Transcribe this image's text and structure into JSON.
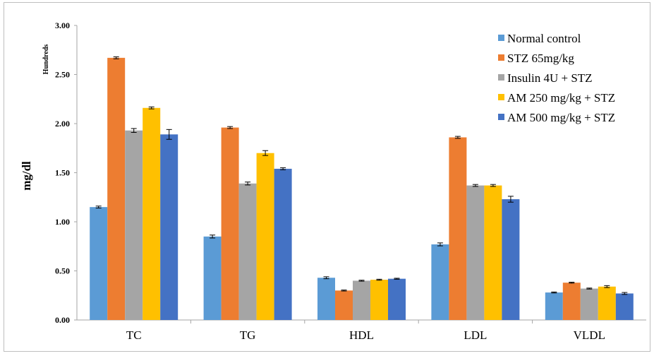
{
  "chart_data": {
    "type": "bar",
    "categories": [
      "TC",
      "TG",
      "HDL",
      "LDL",
      "VLDL"
    ],
    "ylabel": "mg/dl",
    "units_label": "Hundreds",
    "ylim": [
      0,
      3.0
    ],
    "yticks": [
      0,
      0.5,
      1.0,
      1.5,
      2.0,
      2.5,
      3.0
    ],
    "ytick_labels": [
      "0.00",
      "0.50",
      "1.00",
      "1.50",
      "2.00",
      "2.50",
      "3.00"
    ],
    "grid": false,
    "legend_position": "top-right",
    "series": [
      {
        "name": "Normal control",
        "color": "#5b9bd5",
        "values": [
          1.15,
          0.85,
          0.43,
          0.77,
          0.28
        ],
        "errors": [
          0.01,
          0.015,
          0.01,
          0.015,
          0.005
        ]
      },
      {
        "name": "STZ 65mg/kg",
        "color": "#ed7d31",
        "values": [
          2.67,
          1.96,
          0.3,
          1.86,
          0.38
        ],
        "errors": [
          0.01,
          0.01,
          0.005,
          0.01,
          0.005
        ]
      },
      {
        "name": "Insulin 4U + STZ",
        "color": "#a5a5a5",
        "values": [
          1.93,
          1.39,
          0.4,
          1.37,
          0.32
        ],
        "errors": [
          0.02,
          0.015,
          0.005,
          0.01,
          0.005
        ]
      },
      {
        "name": "AM 250 mg/kg + STZ",
        "color": "#ffc000",
        "values": [
          2.16,
          1.7,
          0.41,
          1.37,
          0.34
        ],
        "errors": [
          0.01,
          0.025,
          0.005,
          0.01,
          0.01
        ]
      },
      {
        "name": "AM 500 mg/kg + STZ",
        "color": "#4472c4",
        "values": [
          1.89,
          1.54,
          0.42,
          1.23,
          0.27
        ],
        "errors": [
          0.05,
          0.01,
          0.005,
          0.03,
          0.01
        ]
      }
    ]
  }
}
